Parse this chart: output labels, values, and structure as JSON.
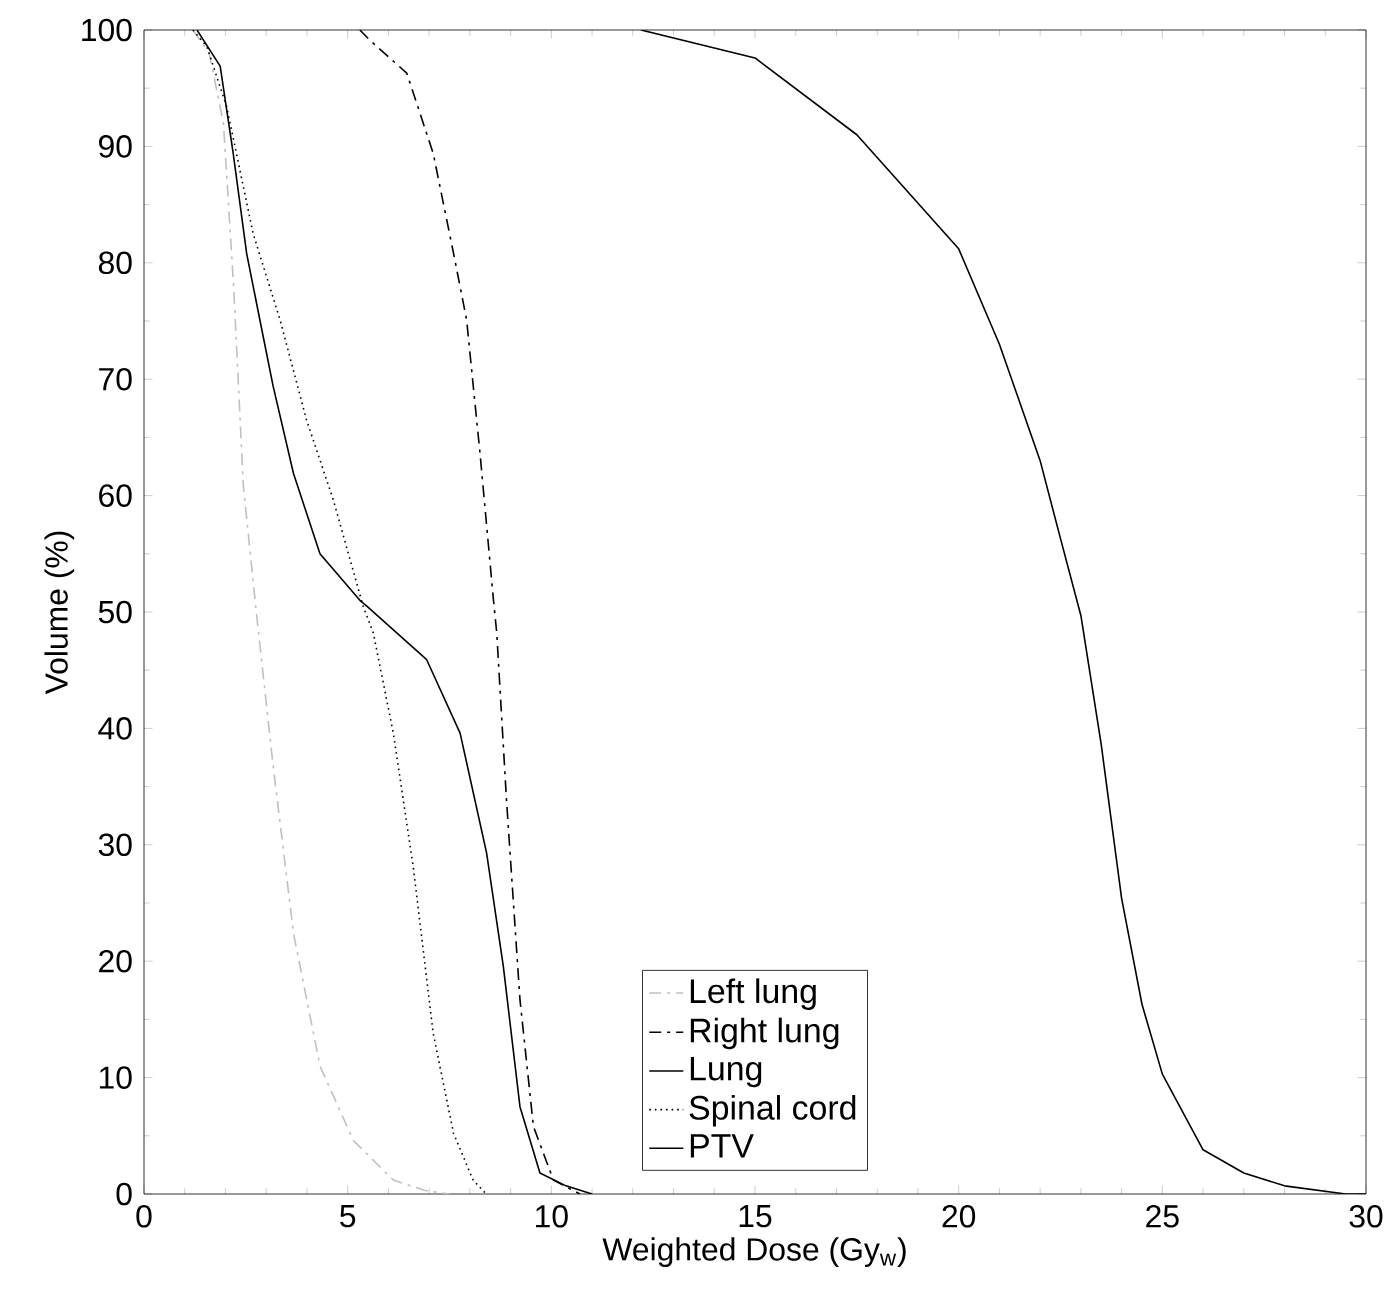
{
  "chart_data": {
    "type": "line",
    "xlabel": "Weighted Dose (Gy$_{w}$)",
    "ylabel": "Volume (%)",
    "xlim": [
      0,
      30
    ],
    "ylim": [
      0,
      100
    ],
    "xticks": [
      0,
      5,
      10,
      15,
      20,
      25,
      30
    ],
    "yticks": [
      0,
      10,
      20,
      30,
      40,
      50,
      60,
      70,
      80,
      90,
      100
    ],
    "legend": "bottom",
    "marker": "none",
    "series": [
      {
        "name": "Left lung",
        "color": "#c0c0c0",
        "line_style": "dashdot",
        "x": [
          1.2,
          1.6,
          1.95,
          2.2,
          2.44,
          2.76,
          3.17,
          3.67,
          4.32,
          5.14,
          6.12,
          6.9,
          7.5
        ],
        "values": [
          100,
          98,
          92,
          78,
          60.8,
          49.9,
          36.8,
          22.4,
          11,
          4.6,
          1.2,
          0.3,
          0
        ]
      },
      {
        "name": "Right lung",
        "color": "#000000",
        "line_style": "dashdot",
        "x": [
          5.3,
          5.55,
          6.45,
          7.1,
          7.6,
          7.92,
          8.25,
          8.58,
          8.66,
          8.9,
          9.23,
          9.56,
          10.05,
          10.7
        ],
        "values": [
          100,
          99.1,
          96.3,
          89.4,
          80.8,
          75.1,
          63.6,
          51,
          48.2,
          33.8,
          16.7,
          5.8,
          1.2,
          0
        ]
      },
      {
        "name": "Lung",
        "color": "#000000",
        "line_style": "solid",
        "x": [
          1.3,
          1.87,
          2.19,
          2.52,
          2.85,
          3.17,
          3.67,
          4.32,
          5.3,
          5.47,
          6.94,
          7.76,
          8.41,
          8.82,
          9.23,
          9.72,
          10.36,
          11
        ],
        "values": [
          100,
          96.9,
          89.4,
          80.8,
          75,
          69.4,
          61.9,
          55,
          51,
          50.5,
          45.9,
          39.6,
          29.3,
          19.6,
          7.5,
          1.8,
          0.7,
          0
        ]
      },
      {
        "name": "Spinal cord",
        "color": "#000000",
        "line_style": "dotted",
        "x": [
          1.2,
          1.54,
          2.03,
          2.68,
          3.34,
          3.99,
          4.65,
          5.38,
          5.63,
          6.12,
          6.61,
          7.1,
          7.6,
          8.08,
          8.4
        ],
        "values": [
          100,
          98.6,
          93.4,
          82.5,
          75.1,
          66.5,
          59.6,
          50.5,
          48.2,
          39.6,
          28.1,
          13.8,
          5.2,
          1.2,
          0
        ]
      },
      {
        "name": "PTV",
        "color": "#000000",
        "line_style": "solid",
        "x": [
          12.2,
          15,
          17.5,
          20,
          21,
          22,
          22.5,
          23,
          23.5,
          24,
          24.5,
          25,
          26,
          27,
          28,
          29.5,
          30
        ],
        "values": [
          100,
          97.6,
          91,
          81.2,
          73,
          63,
          56.3,
          49.7,
          38.6,
          25.4,
          16.3,
          10.3,
          3.8,
          1.8,
          0.7,
          0,
          0
        ]
      }
    ]
  }
}
